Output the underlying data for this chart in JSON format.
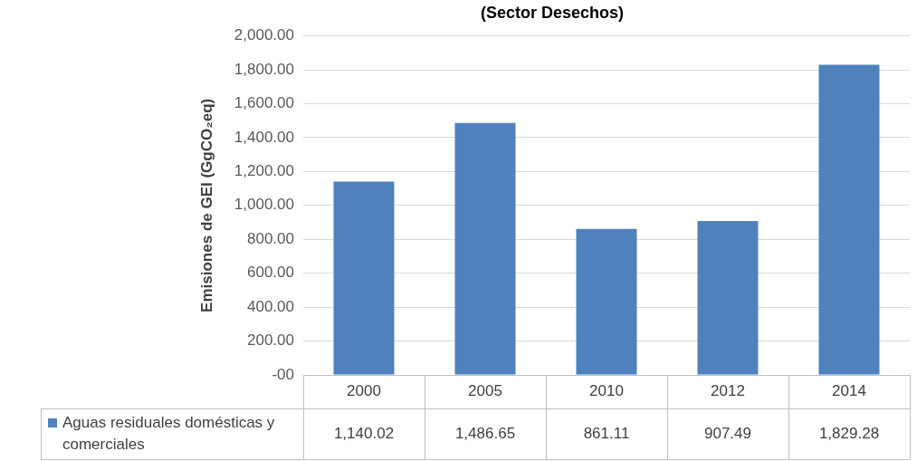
{
  "chart_data": {
    "type": "bar",
    "title": "(Sector Desechos)",
    "ylabel": "Emisiones de GEI (GgCO₂eq)",
    "categories": [
      "2000",
      "2005",
      "2010",
      "2012",
      "2014"
    ],
    "series": [
      {
        "name": "Aguas residuales domésticas y comerciales",
        "color": "#4f81bd",
        "values": [
          1140.02,
          1486.65,
          861.11,
          907.49,
          1829.28
        ],
        "value_labels": [
          "1,140.02",
          "1,486.65",
          "861.11",
          "907.49",
          "1,829.28"
        ]
      }
    ],
    "ylim": [
      0,
      2000
    ],
    "yticks": [
      {
        "value": 0,
        "label": "-00"
      },
      {
        "value": 200,
        "label": "200.00"
      },
      {
        "value": 400,
        "label": "400.00"
      },
      {
        "value": 600,
        "label": "600.00"
      },
      {
        "value": 800,
        "label": "800.00"
      },
      {
        "value": 1000,
        "label": "1,000.00"
      },
      {
        "value": 1200,
        "label": "1,200.00"
      },
      {
        "value": 1400,
        "label": "1,400.00"
      },
      {
        "value": 1600,
        "label": "1,600.00"
      },
      {
        "value": 1800,
        "label": "1,800.00"
      },
      {
        "value": 2000,
        "label": "2,000.00"
      }
    ],
    "grid": "y",
    "legend": "bottom"
  }
}
